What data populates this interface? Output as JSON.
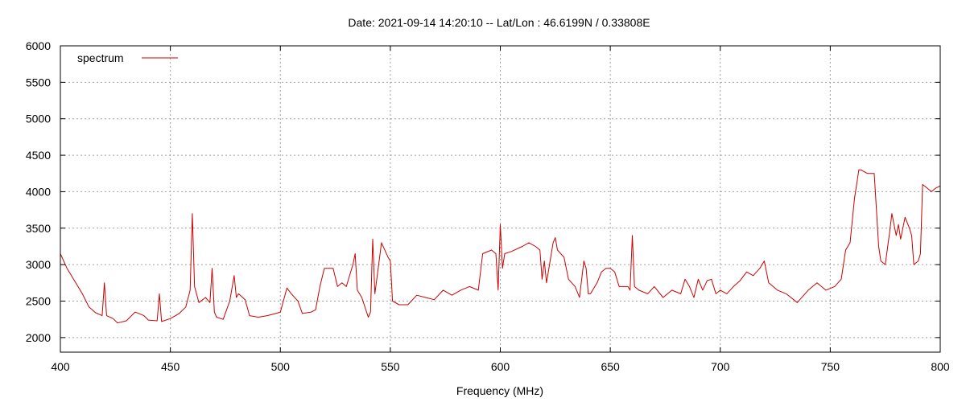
{
  "chart_data": {
    "type": "line",
    "title": "Date: 2021-09-14 14:20:10  --  Lat/Lon : 46.6199N / 0.33808E",
    "xlabel": "Frequency (MHz)",
    "ylabel": "",
    "xlim": [
      400,
      800
    ],
    "ylim": [
      1800,
      6000
    ],
    "xticks": [
      400,
      450,
      500,
      550,
      600,
      650,
      700,
      750,
      800
    ],
    "yticks": [
      2000,
      2500,
      3000,
      3500,
      4000,
      4500,
      5000,
      5500,
      6000
    ],
    "grid": true,
    "legend_position": "top-left",
    "color": "#cc0000",
    "series": [
      {
        "name": "spectrum",
        "x": [
          400,
          403,
          406,
          410,
          413,
          416,
          419,
          420,
          421,
          424,
          426,
          430,
          434,
          438,
          440,
          444,
          445,
          446,
          450,
          454,
          457,
          459,
          460,
          461,
          463,
          466,
          468,
          469,
          470,
          471,
          474,
          477,
          479,
          480,
          481,
          484,
          486,
          490,
          494,
          498,
          500,
          503,
          505,
          508,
          510,
          514,
          516,
          518,
          520,
          524,
          526,
          528,
          530,
          533,
          534,
          535,
          537,
          540,
          541,
          542,
          543,
          546,
          549,
          550,
          551,
          554,
          558,
          562,
          566,
          570,
          574,
          578,
          582,
          586,
          590,
          592,
          596,
          598,
          599,
          600,
          601,
          602,
          605,
          610,
          613,
          616,
          618,
          619,
          620,
          621,
          624,
          625,
          626,
          629,
          631,
          634,
          636,
          638,
          639,
          640,
          641,
          644,
          646,
          648,
          650,
          652,
          654,
          658,
          659,
          660,
          661,
          663,
          667,
          670,
          674,
          678,
          682,
          684,
          686,
          688,
          690,
          692,
          694,
          696,
          698,
          700,
          703,
          706,
          709,
          712,
          715,
          718,
          720,
          722,
          726,
          730,
          735,
          740,
          744,
          748,
          752,
          755,
          757,
          759,
          761,
          763,
          764,
          765,
          767,
          770,
          772,
          773,
          775,
          777,
          778,
          780,
          781,
          782,
          784,
          786,
          787,
          788,
          790,
          791,
          792,
          794,
          796,
          798,
          800
        ],
        "y": [
          3150,
          2950,
          2800,
          2600,
          2420,
          2340,
          2300,
          2750,
          2300,
          2260,
          2200,
          2230,
          2350,
          2300,
          2240,
          2230,
          2600,
          2220,
          2260,
          2330,
          2420,
          2650,
          3700,
          2700,
          2480,
          2550,
          2480,
          2950,
          2350,
          2280,
          2250,
          2500,
          2850,
          2550,
          2600,
          2520,
          2300,
          2280,
          2300,
          2330,
          2350,
          2680,
          2600,
          2500,
          2330,
          2350,
          2380,
          2700,
          2950,
          2950,
          2700,
          2750,
          2700,
          3000,
          3150,
          2650,
          2550,
          2280,
          2350,
          3350,
          2600,
          3300,
          3100,
          3050,
          2500,
          2450,
          2450,
          2580,
          2550,
          2520,
          2650,
          2580,
          2650,
          2700,
          2650,
          3150,
          3200,
          3150,
          2650,
          3550,
          2950,
          3150,
          3180,
          3250,
          3300,
          3250,
          3200,
          2800,
          3050,
          2750,
          3300,
          3370,
          3200,
          3100,
          2800,
          2700,
          2550,
          3050,
          2950,
          2600,
          2600,
          2750,
          2900,
          2950,
          2950,
          2900,
          2700,
          2700,
          2650,
          3400,
          2700,
          2650,
          2600,
          2700,
          2550,
          2650,
          2600,
          2800,
          2700,
          2550,
          2800,
          2650,
          2780,
          2800,
          2600,
          2650,
          2600,
          2700,
          2780,
          2900,
          2850,
          2950,
          3050,
          2750,
          2650,
          2600,
          2480,
          2650,
          2750,
          2650,
          2700,
          2800,
          3200,
          3300,
          3900,
          4300,
          4300,
          4280,
          4250,
          4250,
          3250,
          3050,
          3000,
          3450,
          3700,
          3400,
          3550,
          3350,
          3650,
          3500,
          3400,
          3000,
          3050,
          3150,
          4100,
          4050,
          4000,
          4050,
          4080
        ]
      }
    ]
  }
}
